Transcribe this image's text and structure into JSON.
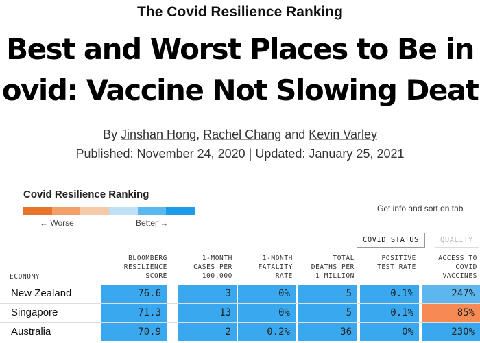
{
  "header": {
    "kicker": "The Covid Resilience Ranking",
    "headline_line1": "Best and Worst Places to Be in",
    "headline_line2": "ovid: Vaccine Not Slowing Deat",
    "byline_prefix": "By",
    "authors": [
      "Jinshan Hong",
      "Rachel Chang",
      "Kevin Varley"
    ],
    "byline_sep1": ",",
    "byline_sep2": "and",
    "dateline": "Published: November 24, 2020 | Updated: January 25, 2021"
  },
  "legend": {
    "title": "Covid Resilience Ranking",
    "worse_label": "← Worse",
    "better_label": "Better →",
    "colors": [
      "#e8742c",
      "#f2a06a",
      "#f6c9a8",
      "#bfe0f6",
      "#59b8ee",
      "#1e9be8"
    ]
  },
  "controls": {
    "sort_hint": "Get info and sort on tab",
    "tabs": [
      "COVID STATUS",
      "QUALITY"
    ]
  },
  "table": {
    "economy_header": "ECONOMY",
    "columns": [
      "BLOOMBERG\nRESILIENCE\nSCORE",
      "1-MONTH\nCASES PER\n100,000",
      "1-MONTH\nFATALITY\nRATE",
      "TOTAL\nDEATHS PER\n1 MILLION",
      "POSITIVE\nTEST RATE",
      "ACCESS TO\nCOVID\nVACCINES"
    ],
    "rows": [
      {
        "economy": "New Zealand",
        "values": [
          "76.6",
          "3",
          "0%",
          "5",
          "0.1%",
          "247%"
        ]
      },
      {
        "economy": "Singapore",
        "values": [
          "71.3",
          "13",
          "0%",
          "5",
          "0.1%",
          "85%"
        ]
      },
      {
        "economy": "Australia",
        "values": [
          "70.9",
          "2",
          "0.2%",
          "36",
          "0%",
          "230%"
        ]
      }
    ],
    "cell_colors": [
      [
        "#3aa8ee",
        "#3aa8ee",
        "#3aa8ee",
        "#3aa8ee",
        "#3aa8ee",
        "#5db6ee"
      ],
      [
        "#3aa8ee",
        "#3aa8ee",
        "#3aa8ee",
        "#3aa8ee",
        "#3aa8ee",
        "#f58a55"
      ],
      [
        "#3aa8ee",
        "#3aa8ee",
        "#3aa8ee",
        "#3aa8ee",
        "#3aa8ee",
        "#3aa8ee"
      ]
    ]
  }
}
